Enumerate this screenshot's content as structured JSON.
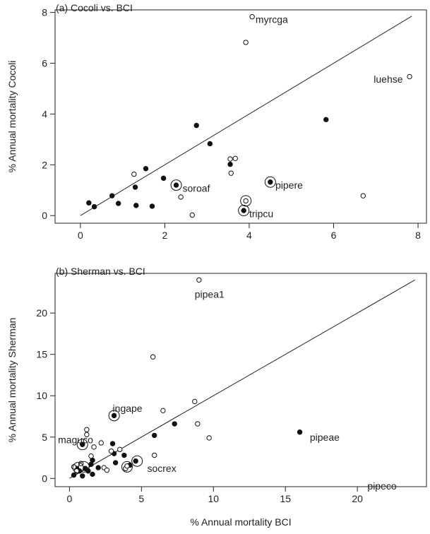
{
  "figure": {
    "xlabel": "% Annual mortality BCI"
  },
  "chart_data": [
    {
      "type": "scatter",
      "title": "(a) Cocoli vs. BCI",
      "xlabel": "",
      "ylabel": "% Annual mortality Cocoli",
      "xlim": [
        -0.6,
        8.2
      ],
      "ylim": [
        -0.3,
        8.1
      ],
      "xticks": [
        "0",
        "2",
        "4",
        "6",
        "8"
      ],
      "yticks": [
        "0",
        "2",
        "4",
        "6",
        "8"
      ],
      "xtick_values": [
        0,
        2,
        4,
        6,
        8
      ],
      "ytick_values": [
        0,
        2,
        4,
        6,
        8
      ],
      "grid": false,
      "reference_line": {
        "x": [
          0,
          7.85
        ],
        "y": [
          0,
          7.85
        ]
      },
      "series": [
        {
          "marker": "filled",
          "points": [
            [
              0.2,
              0.5
            ],
            [
              0.33,
              0.35
            ],
            [
              0.75,
              0.78
            ],
            [
              0.9,
              0.48
            ],
            [
              1.3,
              1.12
            ],
            [
              1.32,
              0.4
            ],
            [
              1.55,
              1.85
            ],
            [
              1.7,
              0.37
            ],
            [
              1.97,
              1.47
            ],
            [
              2.75,
              3.55
            ],
            [
              3.07,
              2.83
            ],
            [
              3.55,
              2.02
            ],
            [
              3.87,
              0.2
            ],
            [
              4.5,
              1.32
            ],
            [
              5.82,
              3.78
            ],
            [
              2.27,
              1.2
            ]
          ]
        },
        {
          "marker": "open",
          "points": [
            [
              1.27,
              1.63
            ],
            [
              2.38,
              0.73
            ],
            [
              2.65,
              0.02
            ],
            [
              3.55,
              2.23
            ],
            [
              3.67,
              2.25
            ],
            [
              3.57,
              1.67
            ],
            [
              3.92,
              6.82
            ],
            [
              4.07,
              7.83
            ],
            [
              6.7,
              0.78
            ],
            [
              7.8,
              5.47
            ],
            [
              3.92,
              0.58
            ]
          ]
        }
      ],
      "circled_points": [
        [
          2.27,
          1.2
        ],
        [
          4.5,
          1.32
        ],
        [
          3.87,
          0.2
        ],
        [
          3.92,
          0.58
        ]
      ],
      "annotations": [
        {
          "text": "myrcga",
          "x": 4.15,
          "y": 7.73
        },
        {
          "text": "luehse",
          "x": 6.95,
          "y": 5.37
        },
        {
          "text": "soroaf",
          "x": 2.42,
          "y": 1.07
        },
        {
          "text": "pipere",
          "x": 4.62,
          "y": 1.2
        },
        {
          "text": "tripcu",
          "x": 4.0,
          "y": 0.07
        }
      ]
    },
    {
      "type": "scatter",
      "title": "(b) Sherman vs. BCI",
      "xlabel": "% Annual mortality BCI",
      "ylabel": "% Annual mortality Sherman",
      "xlim": [
        -1.0,
        24.8
      ],
      "ylim": [
        -1.0,
        24.8
      ],
      "xticks": [
        "0",
        "5",
        "10",
        "15",
        "20"
      ],
      "yticks": [
        "0",
        "5",
        "10",
        "15",
        "20"
      ],
      "xtick_values": [
        0,
        5,
        10,
        15,
        20
      ],
      "ytick_values": [
        0,
        5,
        10,
        15,
        20
      ],
      "grid": false,
      "reference_line": {
        "x": [
          0,
          24
        ],
        "y": [
          0,
          24
        ]
      },
      "series": [
        {
          "marker": "filled",
          "points": [
            [
              0.3,
              0.4
            ],
            [
              0.5,
              1.2
            ],
            [
              0.7,
              0.9
            ],
            [
              0.9,
              4.1
            ],
            [
              0.9,
              0.3
            ],
            [
              1.1,
              1.2
            ],
            [
              1.3,
              0.9
            ],
            [
              1.5,
              1.7
            ],
            [
              1.6,
              2.2
            ],
            [
              1.6,
              0.5
            ],
            [
              2.0,
              1.3
            ],
            [
              3.0,
              4.2
            ],
            [
              3.1,
              3.0
            ],
            [
              3.2,
              1.9
            ],
            [
              3.1,
              7.6
            ],
            [
              3.8,
              2.8
            ],
            [
              4.2,
              1.6
            ],
            [
              4.6,
              2.1
            ],
            [
              5.9,
              5.2
            ],
            [
              7.3,
              6.6
            ],
            [
              16.0,
              5.6
            ]
          ]
        },
        {
          "marker": "open",
          "points": [
            [
              0.3,
              1.4
            ],
            [
              0.5,
              0.9
            ],
            [
              0.8,
              1.8
            ],
            [
              1.2,
              5.9
            ],
            [
              1.2,
              5.3
            ],
            [
              1.5,
              2.7
            ],
            [
              1.7,
              3.8
            ],
            [
              2.2,
              4.3
            ],
            [
              2.4,
              1.3
            ],
            [
              2.6,
              1.0
            ],
            [
              2.9,
              3.3
            ],
            [
              3.5,
              3.5
            ],
            [
              3.9,
              1.2
            ],
            [
              4.0,
              1.5
            ],
            [
              5.8,
              14.7
            ],
            [
              5.9,
              2.8
            ],
            [
              6.5,
              8.2
            ],
            [
              8.7,
              9.3
            ],
            [
              8.9,
              6.6
            ],
            [
              9.0,
              24.0
            ],
            [
              9.7,
              4.9
            ]
          ]
        }
      ],
      "circled_points": [
        [
          3.1,
          7.6
        ],
        [
          0.9,
          4.1
        ],
        [
          0.6,
          1.3
        ],
        [
          1.0,
          1.4
        ],
        [
          4.0,
          1.4
        ],
        [
          4.7,
          2.1
        ]
      ],
      "annotations": [
        {
          "text": "pipea1",
          "x": 8.7,
          "y": 22.3
        },
        {
          "text": "ingape",
          "x": 3.0,
          "y": 8.5
        },
        {
          "text": "maguco",
          "x": -0.8,
          "y": 4.7
        },
        {
          "text": "socrex",
          "x": 5.4,
          "y": 1.2
        },
        {
          "text": "pipeae",
          "x": 16.7,
          "y": 5.0
        },
        {
          "text": "pipeco",
          "x": 20.7,
          "y": -0.9
        }
      ]
    }
  ]
}
